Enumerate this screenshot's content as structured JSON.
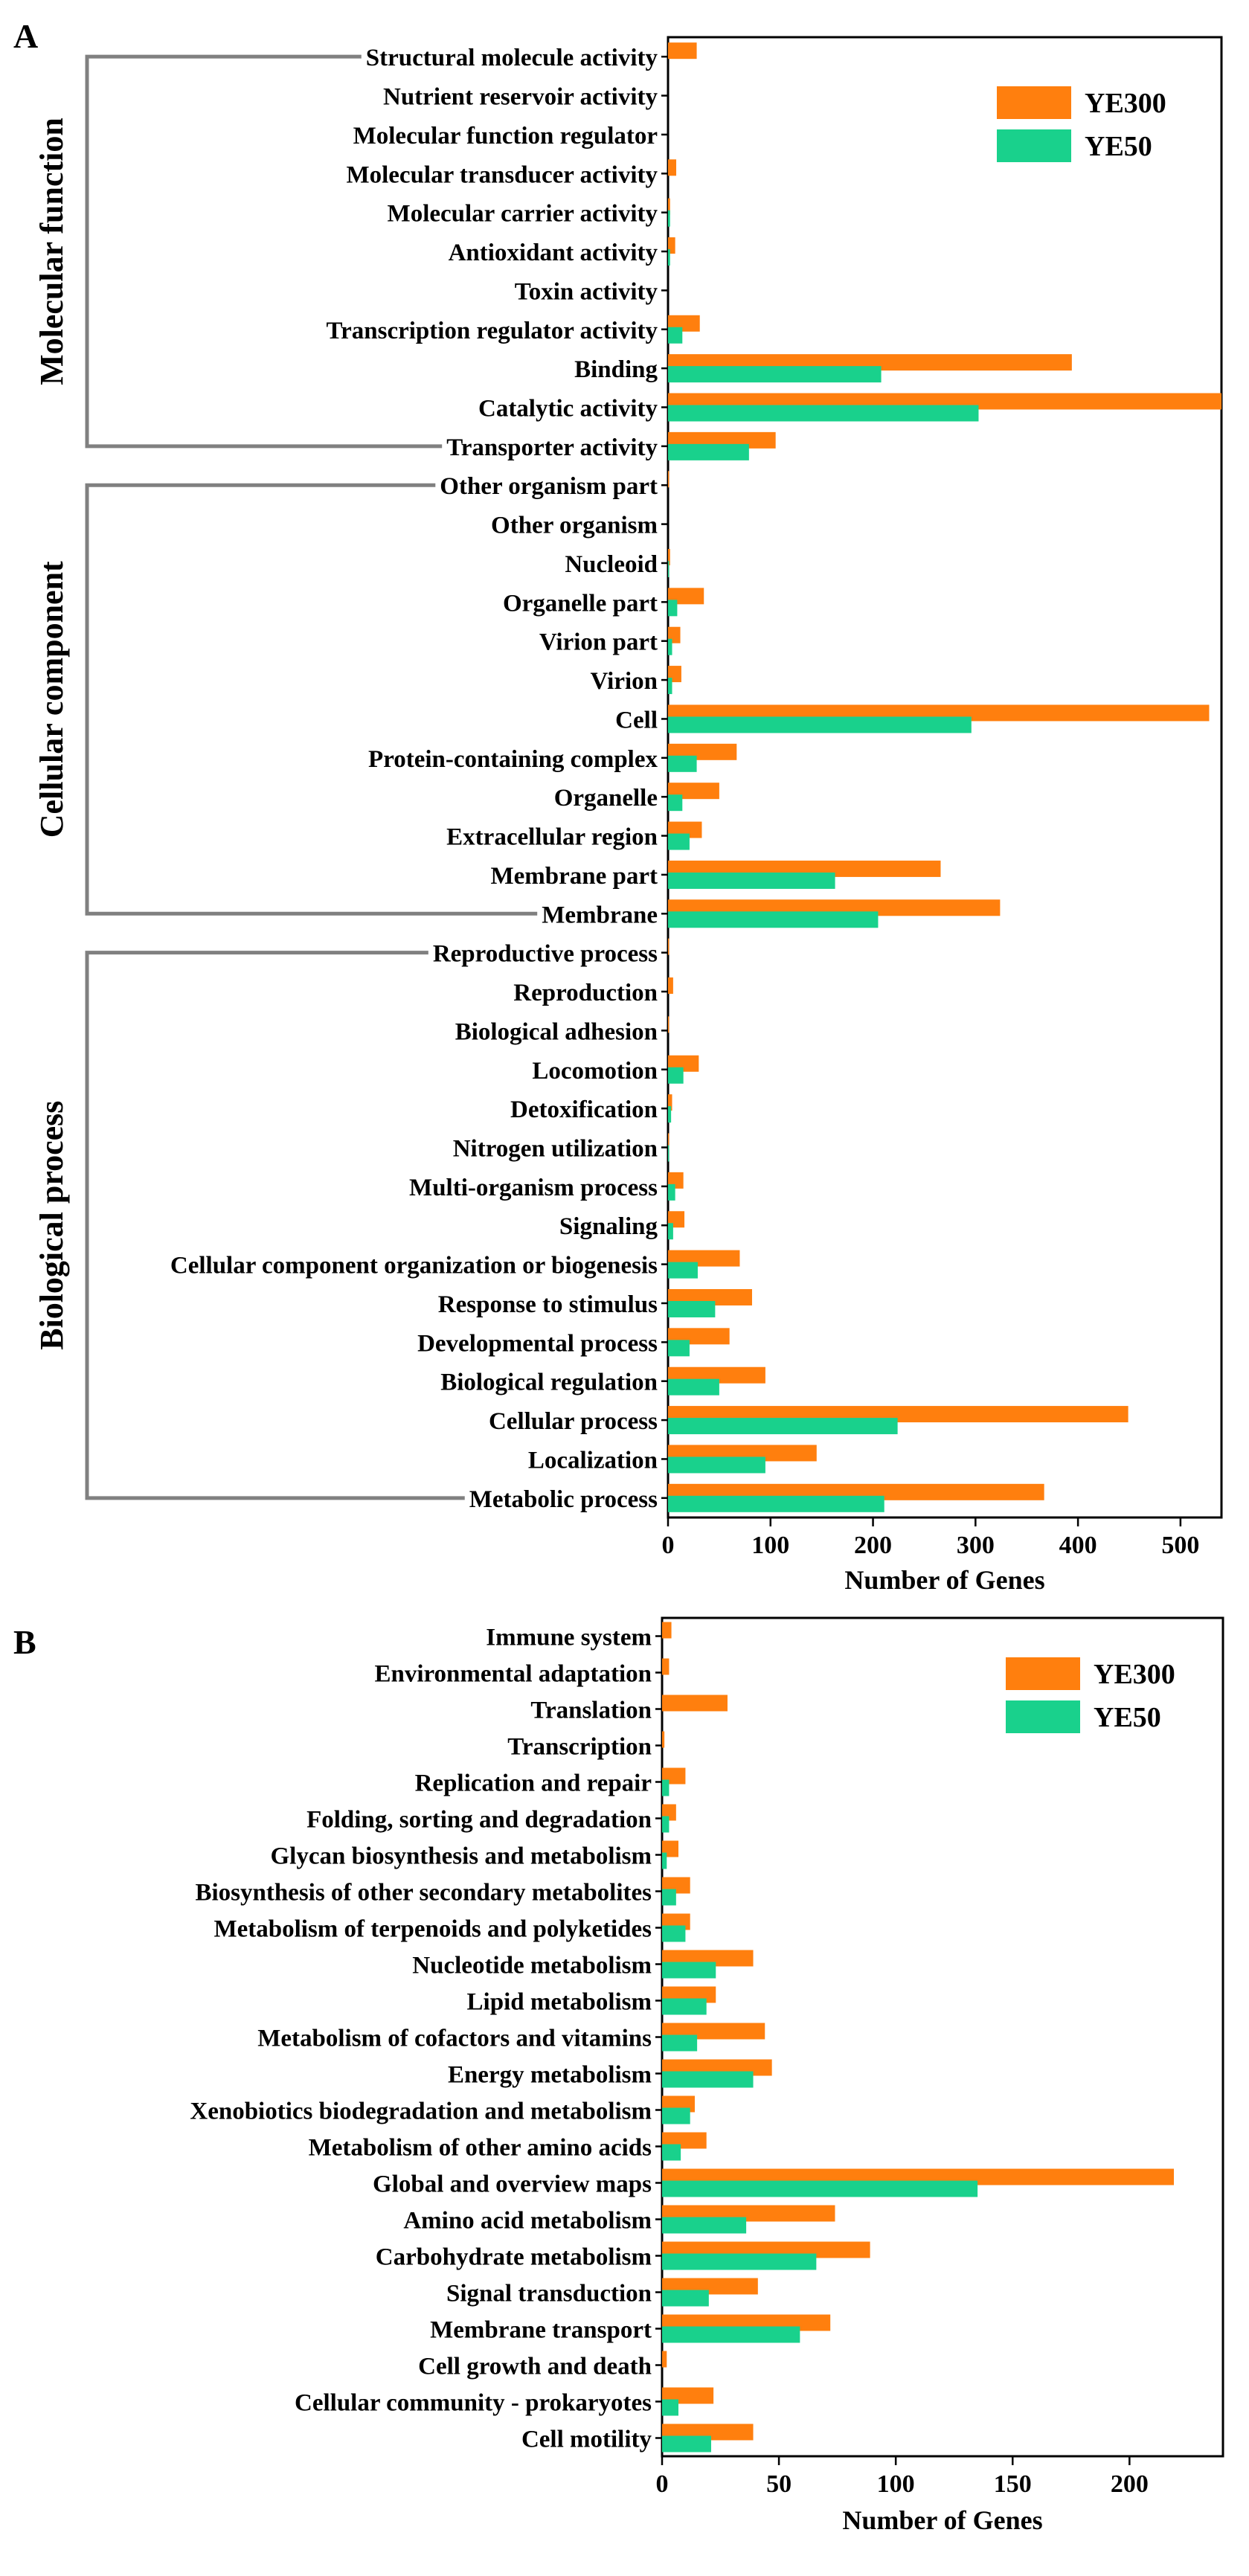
{
  "colors": {
    "YE300": "#ff7f0e",
    "YE50": "#19d18c",
    "bracket": "#808080"
  },
  "chart_data": [
    {
      "type": "bar",
      "orientation": "horizontal",
      "panel_label": "A",
      "xlabel": "Number of Genes",
      "xlim": [
        0,
        540
      ],
      "xticks": [
        0,
        100,
        200,
        300,
        400,
        500
      ],
      "legend": {
        "position": "top-right",
        "entries": [
          "YE300",
          "YE50"
        ]
      },
      "categories": [
        "Structural molecule activity",
        "Nutrient reservoir activity",
        "Molecular function regulator",
        "Molecular transducer activity",
        "Molecular carrier activity",
        "Antioxidant activity",
        "Toxin activity",
        "Transcription regulator activity",
        "Binding",
        "Catalytic activity",
        "Transporter activity",
        "Other organism part",
        "Other organism",
        "Nucleoid",
        "Organelle part",
        "Virion part",
        "Virion",
        "Cell",
        "Protein-containing complex",
        "Organelle",
        "Extracellular region",
        "Membrane part",
        "Membrane",
        "Reproductive process",
        "Reproduction",
        "Biological adhesion",
        "Locomotion",
        "Detoxification",
        "Nitrogen utilization",
        "Multi-organism process",
        "Signaling",
        "Cellular component organization or biogenesis",
        "Response to stimulus",
        "Developmental process",
        "Biological regulation",
        "Cellular process",
        "Localization",
        "Metabolic process"
      ],
      "series": [
        {
          "name": "YE300",
          "values": [
            28,
            0,
            0,
            8,
            2,
            7,
            0,
            31,
            394,
            540,
            105,
            1,
            0,
            2,
            35,
            12,
            13,
            528,
            67,
            50,
            33,
            266,
            324,
            1,
            5,
            1,
            30,
            4,
            1,
            15,
            16,
            70,
            82,
            60,
            95,
            449,
            145,
            367
          ]
        },
        {
          "name": "YE50",
          "values": [
            0,
            0,
            0,
            0,
            2,
            2,
            0,
            14,
            208,
            303,
            79,
            0,
            0,
            1,
            9,
            4,
            4,
            296,
            28,
            14,
            21,
            163,
            205,
            0,
            0,
            0,
            15,
            3,
            1,
            7,
            5,
            29,
            46,
            21,
            50,
            224,
            95,
            211
          ]
        }
      ],
      "groups": [
        {
          "label": "Molecular function",
          "from": 0,
          "to": 10
        },
        {
          "label": "Cellular component",
          "from": 11,
          "to": 22
        },
        {
          "label": "Biological process",
          "from": 23,
          "to": 37
        }
      ]
    },
    {
      "type": "bar",
      "orientation": "horizontal",
      "panel_label": "B",
      "xlabel": "Number of Genes",
      "xlim": [
        0,
        240
      ],
      "xticks": [
        0,
        50,
        100,
        150,
        200
      ],
      "legend": {
        "position": "top-right",
        "entries": [
          "YE300",
          "YE50"
        ]
      },
      "categories": [
        "Immune system",
        "Environmental adaptation",
        "Translation",
        "Transcription",
        "Replication and repair",
        "Folding, sorting and degradation",
        "Glycan biosynthesis and metabolism",
        "Biosynthesis of other secondary metabolites",
        "Metabolism of terpenoids and polyketides",
        "Nucleotide metabolism",
        "Lipid metabolism",
        "Metabolism of cofactors and vitamins",
        "Energy metabolism",
        "Xenobiotics biodegradation and metabolism",
        "Metabolism of other amino acids",
        "Global and overview maps",
        "Amino acid metabolism",
        "Carbohydrate metabolism",
        "Signal transduction",
        "Membrane transport",
        "Cell growth and death",
        "Cellular community - prokaryotes",
        "Cell motility"
      ],
      "series": [
        {
          "name": "YE300",
          "values": [
            4,
            3,
            28,
            1,
            10,
            6,
            7,
            12,
            12,
            39,
            23,
            44,
            47,
            14,
            19,
            219,
            74,
            89,
            41,
            72,
            2,
            22,
            39
          ]
        },
        {
          "name": "YE50",
          "values": [
            0,
            0,
            0,
            0,
            3,
            3,
            2,
            6,
            10,
            23,
            19,
            15,
            39,
            12,
            8,
            135,
            36,
            66,
            20,
            59,
            0,
            7,
            21
          ]
        }
      ]
    }
  ]
}
